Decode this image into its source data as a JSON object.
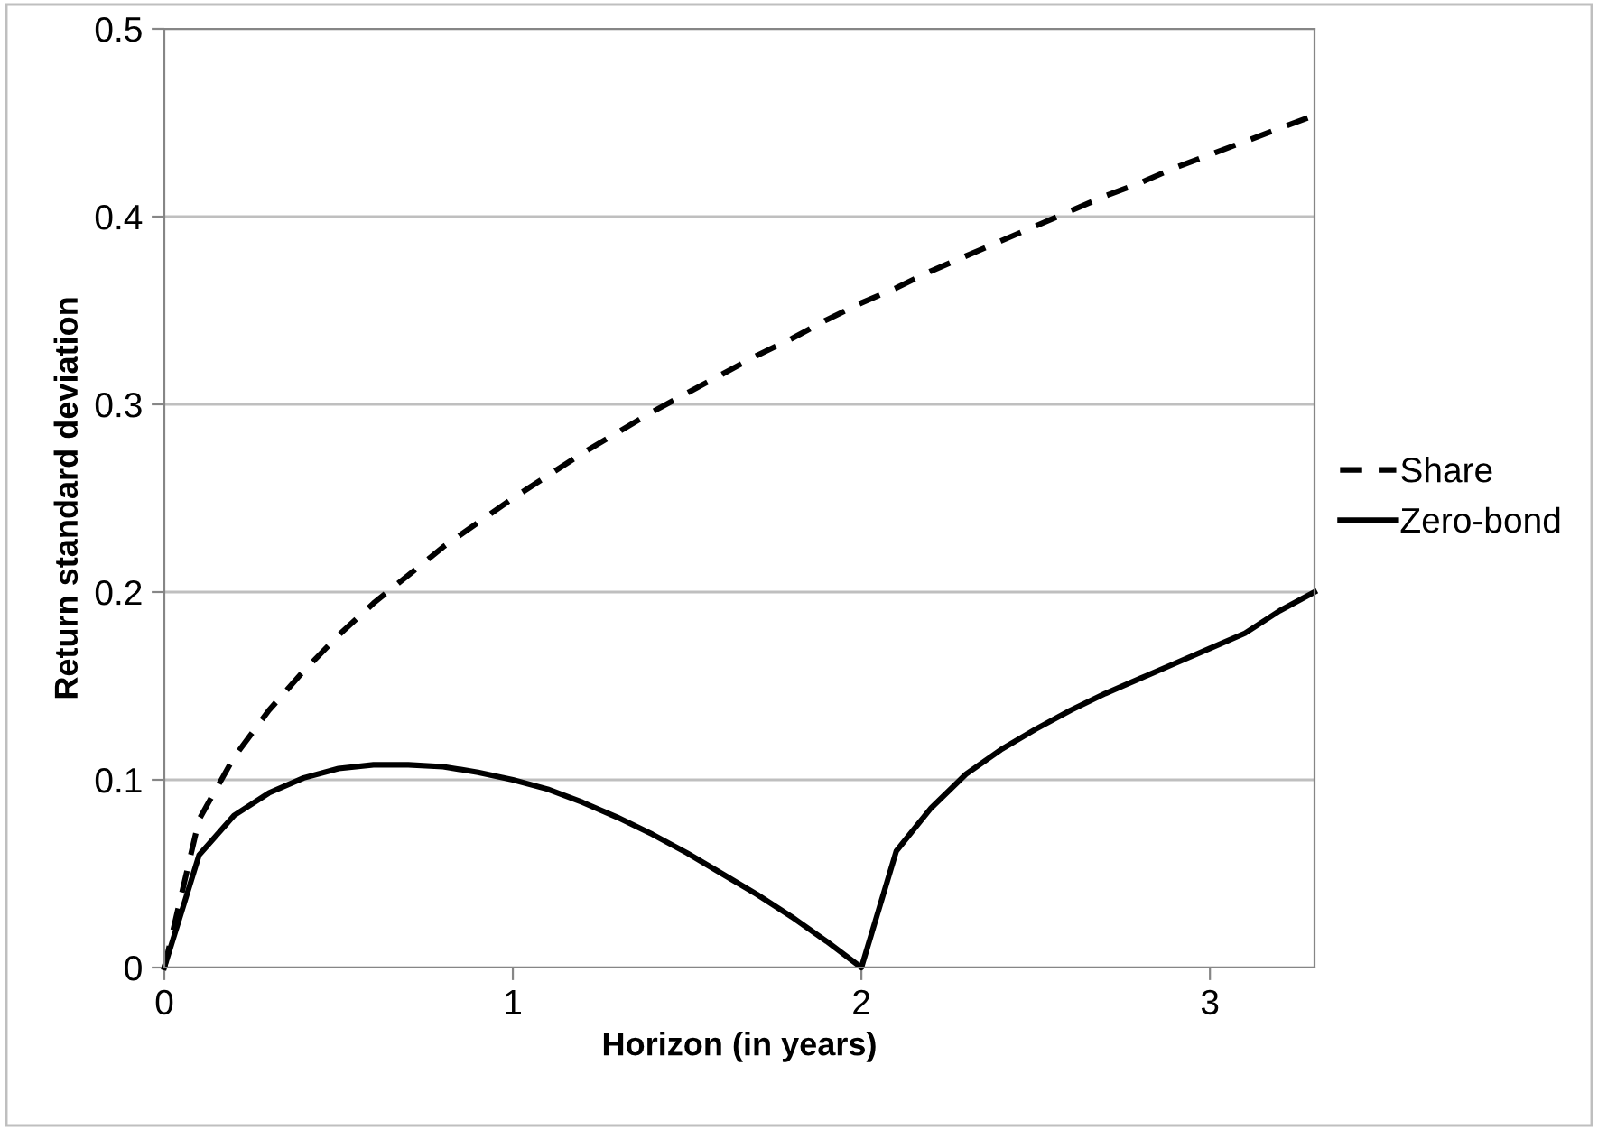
{
  "chart_data": {
    "type": "line",
    "xlabel": "Horizon (in years)",
    "ylabel": "Return standard deviation",
    "x": [
      0,
      0.1,
      0.2,
      0.3,
      0.4,
      0.5,
      0.6,
      0.7,
      0.8,
      0.9,
      1.0,
      1.1,
      1.2,
      1.3,
      1.4,
      1.5,
      1.6,
      1.7,
      1.8,
      1.9,
      2.0,
      2.1,
      2.2,
      2.3,
      2.4,
      2.5,
      2.6,
      2.7,
      2.8,
      2.9,
      3.0,
      3.1,
      3.2,
      3.3
    ],
    "series": [
      {
        "name": "Share",
        "color": "#000000",
        "line_style": "dashed",
        "values": [
          0,
          0.079,
          0.112,
          0.137,
          0.158,
          0.177,
          0.194,
          0.209,
          0.224,
          0.237,
          0.25,
          0.262,
          0.274,
          0.285,
          0.296,
          0.306,
          0.316,
          0.326,
          0.335,
          0.345,
          0.354,
          0.362,
          0.371,
          0.379,
          0.387,
          0.395,
          0.403,
          0.411,
          0.418,
          0.426,
          0.433,
          0.44,
          0.447,
          0.454
        ]
      },
      {
        "name": "Zero-bond",
        "color": "#000000",
        "line_style": "solid",
        "values": [
          0,
          0.06,
          0.081,
          0.093,
          0.101,
          0.106,
          0.108,
          0.108,
          0.107,
          0.104,
          0.1,
          0.095,
          0.088,
          0.08,
          0.071,
          0.061,
          0.05,
          0.039,
          0.027,
          0.014,
          0,
          0.062,
          0.085,
          0.103,
          0.116,
          0.127,
          0.137,
          0.146,
          0.154,
          0.162,
          0.17,
          0.178,
          0.19,
          0.2
        ]
      }
    ],
    "xlim": [
      0,
      3.3
    ],
    "xticks": [
      0,
      1,
      2,
      3
    ],
    "ylim": [
      0,
      0.5
    ],
    "yticks": [
      0,
      0.1,
      0.2,
      0.3,
      0.4,
      0.5
    ],
    "grid": "y",
    "legend": "right",
    "marker": "none"
  }
}
